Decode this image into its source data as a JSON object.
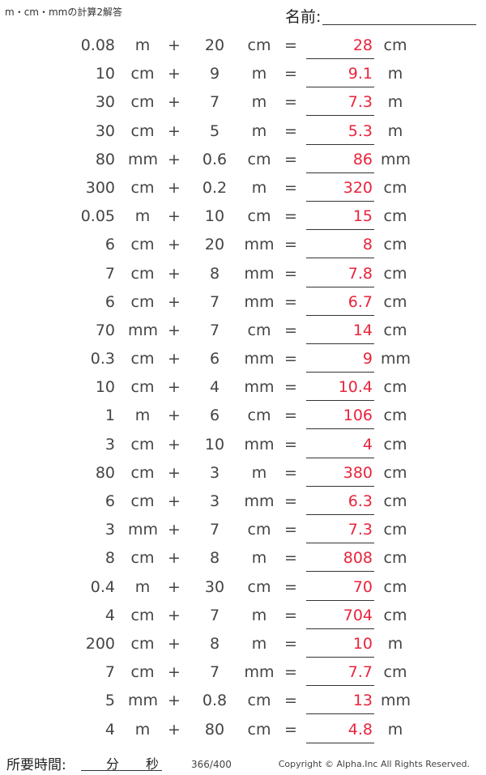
{
  "title": "m・cm・mmの計算2解答",
  "name_label": "名前:",
  "problems": [
    {
      "a": "0.08",
      "au": "m",
      "b": "20",
      "bu": "cm",
      "ans": "28",
      "ru": "cm"
    },
    {
      "a": "10",
      "au": "cm",
      "b": "9",
      "bu": "m",
      "ans": "9.1",
      "ru": "m"
    },
    {
      "a": "30",
      "au": "cm",
      "b": "7",
      "bu": "m",
      "ans": "7.3",
      "ru": "m"
    },
    {
      "a": "30",
      "au": "cm",
      "b": "5",
      "bu": "m",
      "ans": "5.3",
      "ru": "m"
    },
    {
      "a": "80",
      "au": "mm",
      "b": "0.6",
      "bu": "cm",
      "ans": "86",
      "ru": "mm"
    },
    {
      "a": "300",
      "au": "cm",
      "b": "0.2",
      "bu": "m",
      "ans": "320",
      "ru": "cm"
    },
    {
      "a": "0.05",
      "au": "m",
      "b": "10",
      "bu": "cm",
      "ans": "15",
      "ru": "cm"
    },
    {
      "a": "6",
      "au": "cm",
      "b": "20",
      "bu": "mm",
      "ans": "8",
      "ru": "cm"
    },
    {
      "a": "7",
      "au": "cm",
      "b": "8",
      "bu": "mm",
      "ans": "7.8",
      "ru": "cm"
    },
    {
      "a": "6",
      "au": "cm",
      "b": "7",
      "bu": "mm",
      "ans": "6.7",
      "ru": "cm"
    },
    {
      "a": "70",
      "au": "mm",
      "b": "7",
      "bu": "cm",
      "ans": "14",
      "ru": "cm"
    },
    {
      "a": "0.3",
      "au": "cm",
      "b": "6",
      "bu": "mm",
      "ans": "9",
      "ru": "mm"
    },
    {
      "a": "10",
      "au": "cm",
      "b": "4",
      "bu": "mm",
      "ans": "10.4",
      "ru": "cm"
    },
    {
      "a": "1",
      "au": "m",
      "b": "6",
      "bu": "cm",
      "ans": "106",
      "ru": "cm"
    },
    {
      "a": "3",
      "au": "cm",
      "b": "10",
      "bu": "mm",
      "ans": "4",
      "ru": "cm"
    },
    {
      "a": "80",
      "au": "cm",
      "b": "3",
      "bu": "m",
      "ans": "380",
      "ru": "cm"
    },
    {
      "a": "6",
      "au": "cm",
      "b": "3",
      "bu": "mm",
      "ans": "6.3",
      "ru": "cm"
    },
    {
      "a": "3",
      "au": "mm",
      "b": "7",
      "bu": "cm",
      "ans": "7.3",
      "ru": "cm"
    },
    {
      "a": "8",
      "au": "cm",
      "b": "8",
      "bu": "m",
      "ans": "808",
      "ru": "cm"
    },
    {
      "a": "0.4",
      "au": "m",
      "b": "30",
      "bu": "cm",
      "ans": "70",
      "ru": "cm"
    },
    {
      "a": "4",
      "au": "cm",
      "b": "7",
      "bu": "m",
      "ans": "704",
      "ru": "cm"
    },
    {
      "a": "200",
      "au": "cm",
      "b": "8",
      "bu": "m",
      "ans": "10",
      "ru": "m"
    },
    {
      "a": "7",
      "au": "cm",
      "b": "7",
      "bu": "mm",
      "ans": "7.7",
      "ru": "cm"
    },
    {
      "a": "5",
      "au": "mm",
      "b": "0.8",
      "bu": "cm",
      "ans": "13",
      "ru": "mm"
    },
    {
      "a": "4",
      "au": "m",
      "b": "80",
      "bu": "cm",
      "ans": "4.8",
      "ru": "m"
    }
  ],
  "operators": {
    "plus": "+",
    "equals": "="
  },
  "footer": {
    "time_label": "所要時間:",
    "minutes_label": "分",
    "seconds_label": "秒",
    "page": "366/400",
    "copyright": "Copyright © Alpha.Inc All Rights Reserved."
  },
  "colors": {
    "answer": "#e8243c",
    "text": "#444444"
  }
}
